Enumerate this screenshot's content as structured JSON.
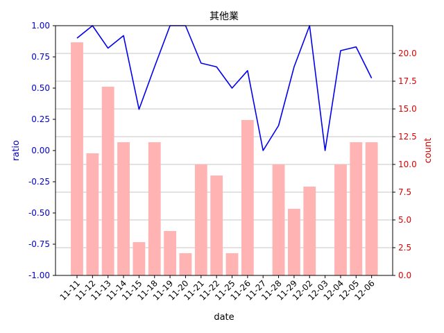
{
  "chart_data": {
    "type": "bar+line",
    "title": "其他業",
    "xlabel": "date",
    "ylabel_left": "ratio",
    "ylabel_right": "count",
    "categories": [
      "11-11",
      "11-12",
      "11-13",
      "11-14",
      "11-15",
      "11-18",
      "11-19",
      "11-20",
      "11-21",
      "11-22",
      "11-25",
      "11-26",
      "11-27",
      "11-28",
      "11-29",
      "12-02",
      "12-03",
      "12-04",
      "12-05",
      "12-06"
    ],
    "series": [
      {
        "axis": "right",
        "kind": "bar",
        "color": "#ffb3b3",
        "values": [
          21,
          11,
          17,
          12,
          3,
          12,
          4,
          2,
          10,
          9,
          2,
          14,
          0,
          10,
          6,
          8,
          0,
          10,
          12,
          12
        ]
      },
      {
        "axis": "left",
        "kind": "line",
        "color": "#0000ee",
        "values": [
          0.9,
          1.0,
          0.82,
          0.92,
          0.33,
          0.67,
          1.0,
          1.0,
          0.7,
          0.67,
          0.5,
          0.64,
          0.0,
          0.2,
          0.67,
          1.0,
          0.0,
          0.8,
          0.83,
          0.58
        ]
      }
    ],
    "ylim_left": [
      -1.0,
      1.0
    ],
    "ylim_right": [
      0,
      22.5
    ],
    "yticks_left": [
      "-1.00",
      "-0.75",
      "-0.50",
      "-0.25",
      "0.00",
      "0.25",
      "0.50",
      "0.75",
      "1.00"
    ],
    "yticks_right": [
      "0.0",
      "2.5",
      "5.0",
      "7.5",
      "10.0",
      "12.5",
      "15.0",
      "17.5",
      "20.0"
    ],
    "grid": "horizontal",
    "left_axis_color": "#0000cc",
    "right_axis_color": "#dd0000"
  }
}
